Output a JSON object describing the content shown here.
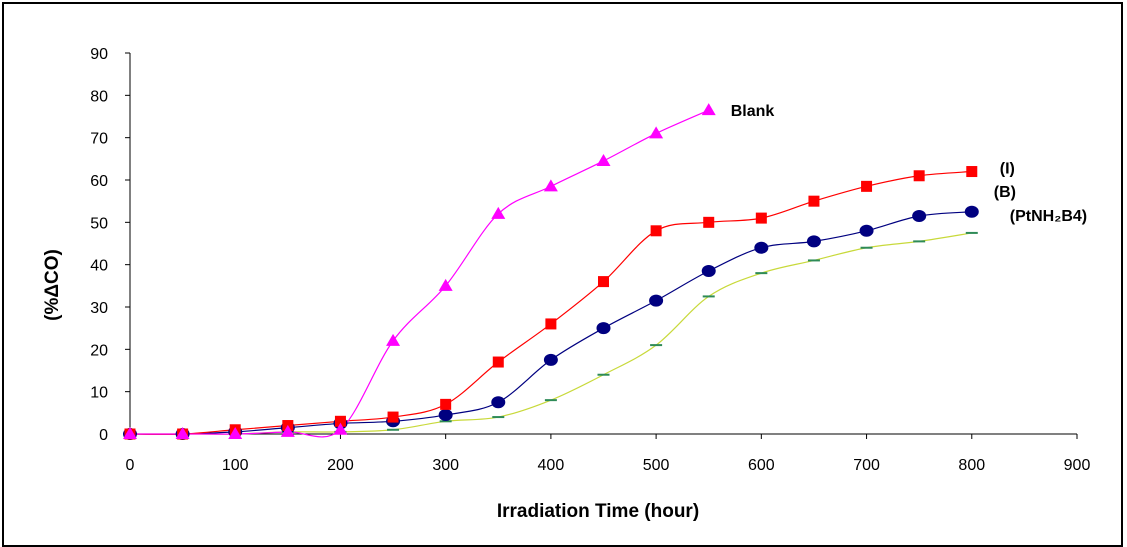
{
  "chart_data": {
    "type": "line",
    "title": "",
    "xlabel": "Irradiation Time (hour)",
    "ylabel": "(%ΔCO)",
    "xlim": [
      0,
      900
    ],
    "ylim": [
      0,
      90
    ],
    "xticks": [
      "0",
      "100",
      "200",
      "300",
      "400",
      "500",
      "600",
      "700",
      "800",
      "900"
    ],
    "yticks": [
      "0",
      "10",
      "20",
      "30",
      "40",
      "50",
      "60",
      "70",
      "80",
      "90"
    ],
    "grid": false,
    "legend": "inline labels at line ends",
    "series": [
      {
        "name": "Blank",
        "color": "#ff00ff",
        "marker": "triangle",
        "x": [
          0,
          50,
          100,
          150,
          200,
          250,
          300,
          350,
          400,
          450,
          500,
          550
        ],
        "y": [
          0,
          0,
          0,
          0.5,
          1,
          22,
          35,
          52,
          58.5,
          64.5,
          71,
          76.5
        ]
      },
      {
        "name": "(I)",
        "color": "#ff0000",
        "marker": "square",
        "x": [
          0,
          50,
          100,
          150,
          200,
          250,
          300,
          350,
          400,
          450,
          500,
          550,
          600,
          650,
          700,
          750,
          800
        ],
        "y": [
          0,
          0,
          1,
          2,
          3,
          4,
          7,
          17,
          26,
          36,
          48,
          50,
          51,
          55,
          58.5,
          61,
          62
        ]
      },
      {
        "name": "(B)",
        "color": "#000080",
        "marker": "circle",
        "x": [
          0,
          50,
          100,
          150,
          200,
          250,
          300,
          350,
          400,
          450,
          500,
          550,
          600,
          650,
          700,
          750,
          800
        ],
        "y": [
          0,
          0,
          0.5,
          1.5,
          2.5,
          3,
          4.5,
          7.5,
          17.5,
          25,
          31.5,
          38.5,
          44,
          45.5,
          48,
          51.5,
          52.5
        ]
      },
      {
        "name": "(PtNH₂B4)",
        "color": "#9acd32",
        "marker": "dash",
        "x": [
          0,
          50,
          100,
          150,
          200,
          250,
          300,
          350,
          400,
          450,
          500,
          550,
          600,
          650,
          700,
          750,
          800
        ],
        "y": [
          0,
          0,
          0,
          0.5,
          0.5,
          1,
          3,
          4,
          8,
          14,
          21,
          32.5,
          38,
          41,
          44,
          45.5,
          47.5
        ]
      }
    ]
  }
}
